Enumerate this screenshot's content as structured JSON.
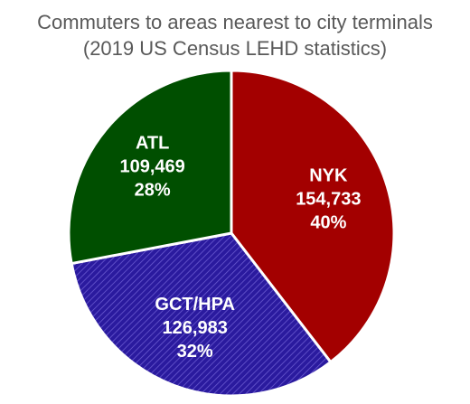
{
  "chart_data": {
    "type": "pie",
    "title": "Commuters to areas nearest to city terminals",
    "subtitle": "(2019 US Census LEHD statistics)",
    "categories": [
      "NYK",
      "GCT/HPA",
      "ATL"
    ],
    "values": [
      154733,
      126983,
      109469
    ],
    "value_labels": [
      "154,733",
      "126,983",
      "109,469"
    ],
    "percentages": [
      40,
      32,
      28
    ],
    "percentage_labels": [
      "40%",
      "32%",
      "28%"
    ],
    "colors": [
      "#a30000",
      "#2a1a9e",
      "#004f00"
    ],
    "hatched": [
      false,
      true,
      false
    ]
  }
}
